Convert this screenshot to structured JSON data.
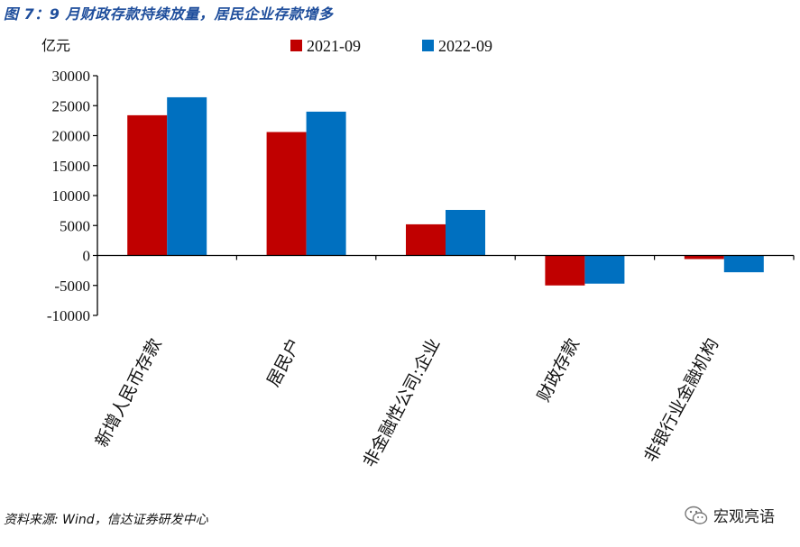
{
  "title": "图 7：9 月财政存款持续放量，居民企业存款增多",
  "source": "资料来源: Wind，信达证券研发中心",
  "watermark": {
    "text": "宏观亮语",
    "icon": "wechat-icon"
  },
  "colors": {
    "series1": "#c00000",
    "series2": "#0070c0",
    "title": "#1f4e9c",
    "axis": "#000000"
  },
  "chart_data": {
    "type": "bar",
    "unit_label": "亿元",
    "categories": [
      "新增人民币存款",
      "居民户",
      "非金融性公司:企业",
      "财政存款",
      "非银行业金融机构"
    ],
    "series": [
      {
        "name": "2021-09",
        "values": [
          23400,
          20600,
          5200,
          -5000,
          -600
        ]
      },
      {
        "name": "2022-09",
        "values": [
          26400,
          24000,
          7600,
          -4700,
          -2800
        ]
      }
    ],
    "ylim": [
      -10000,
      30000
    ],
    "yticks": [
      30000,
      25000,
      20000,
      15000,
      10000,
      5000,
      0,
      -5000,
      -10000
    ],
    "ytick_labels": [
      "30000",
      "25000",
      "20000",
      "15000",
      "10000",
      "5000",
      "0",
      "-5000",
      "-10000"
    ],
    "legend_position": "top-center",
    "grid": false
  }
}
